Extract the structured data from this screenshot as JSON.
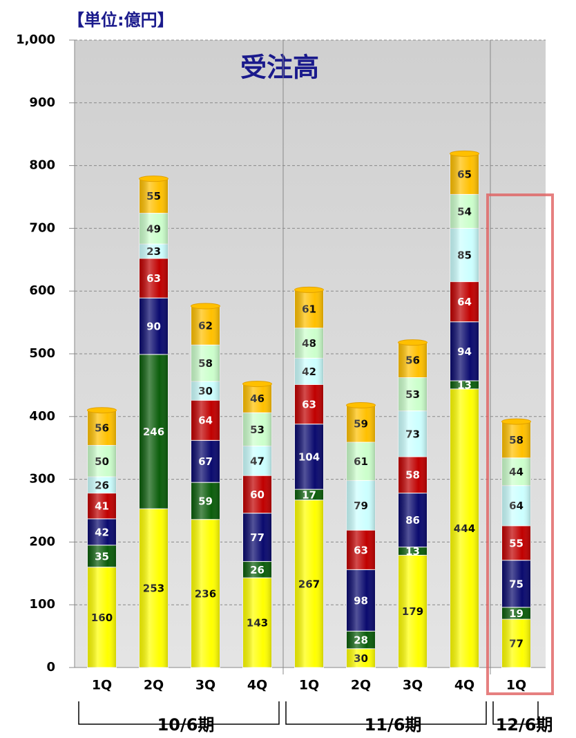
{
  "chart_data": {
    "type": "stacked_bar",
    "title": "受注高",
    "unit_label": "【単位:億円】",
    "categories": [
      "1Q",
      "2Q",
      "3Q",
      "4Q",
      "1Q",
      "2Q",
      "3Q",
      "4Q",
      "1Q"
    ],
    "groups": [
      "10/6期",
      "11/6期",
      "12/6期"
    ],
    "series": [
      {
        "color": "#ffff00",
        "values": [
          160,
          253,
          236,
          143,
          267,
          30,
          179,
          444,
          77
        ]
      },
      {
        "color": "#0b5d0b",
        "values": [
          35,
          246,
          59,
          26,
          17,
          28,
          13,
          13,
          19
        ]
      },
      {
        "color": "#0a0a6e",
        "values": [
          42,
          90,
          67,
          77,
          104,
          98,
          86,
          94,
          75
        ]
      },
      {
        "color": "#c00000",
        "values": [
          41,
          63,
          64,
          60,
          63,
          63,
          58,
          64,
          55
        ]
      },
      {
        "color": "#ccffff",
        "values": [
          26,
          23,
          30,
          47,
          42,
          79,
          73,
          85,
          64
        ]
      },
      {
        "color": "#ccffcc",
        "values": [
          50,
          49,
          58,
          53,
          48,
          61,
          53,
          54,
          44
        ]
      },
      {
        "color": "#ffc000",
        "values": [
          56,
          55,
          62,
          46,
          61,
          59,
          56,
          65,
          58
        ]
      }
    ],
    "ylim": [
      0,
      1000
    ],
    "yticks": [
      0,
      100,
      200,
      300,
      400,
      500,
      600,
      700,
      800,
      900,
      {
        "value": 1000,
        "label": "1,000"
      }
    ],
    "grid": true
  }
}
